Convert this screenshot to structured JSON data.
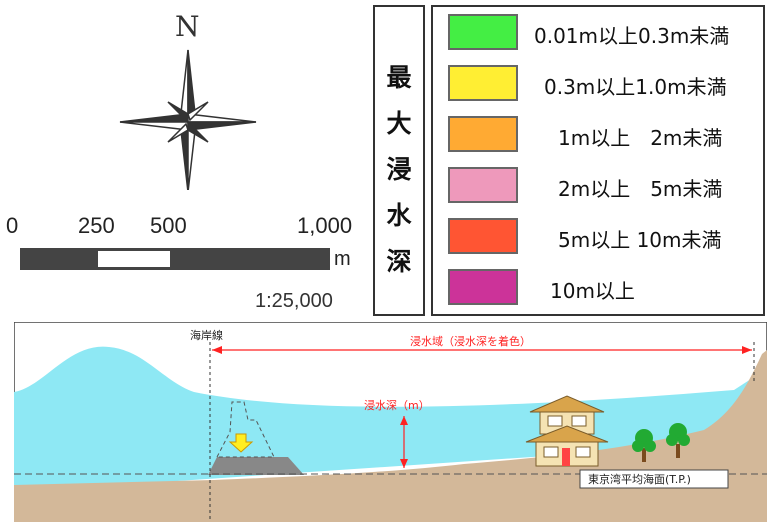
{
  "compass": {
    "north_label": "N",
    "icon": "compass-rose-icon"
  },
  "scale": {
    "ticks": [
      "0",
      "250",
      "500",
      "1,000"
    ],
    "unit": "m",
    "ratio": "1:25,000"
  },
  "legend": {
    "title_chars": [
      "最",
      "大",
      "浸",
      "水",
      "深"
    ],
    "items": [
      {
        "label": "0.01m以上0.3m未満",
        "color": "#44ee44"
      },
      {
        "label": "0.3m以上1.0m未満",
        "color": "#ffee33"
      },
      {
        "label": "1m以上　2m未満",
        "color": "#ffaa33"
      },
      {
        "label": "2m以上　5m未満",
        "color": "#ee99bb"
      },
      {
        "label": "5m以上 10m未満",
        "color": "#ff5533"
      },
      {
        "label": "10m以上",
        "color": "#cc3399"
      }
    ]
  },
  "cross_section": {
    "coastline_label": "海岸線",
    "inundation_area_label": "浸水域（浸水深を着色）",
    "inundation_depth_label": "浸水深（m）",
    "datum_label": "東京湾平均海面(T.P.)",
    "colors": {
      "water": "#8ee8f4",
      "land": "#d3b899",
      "arrow": "#ff2222"
    }
  }
}
